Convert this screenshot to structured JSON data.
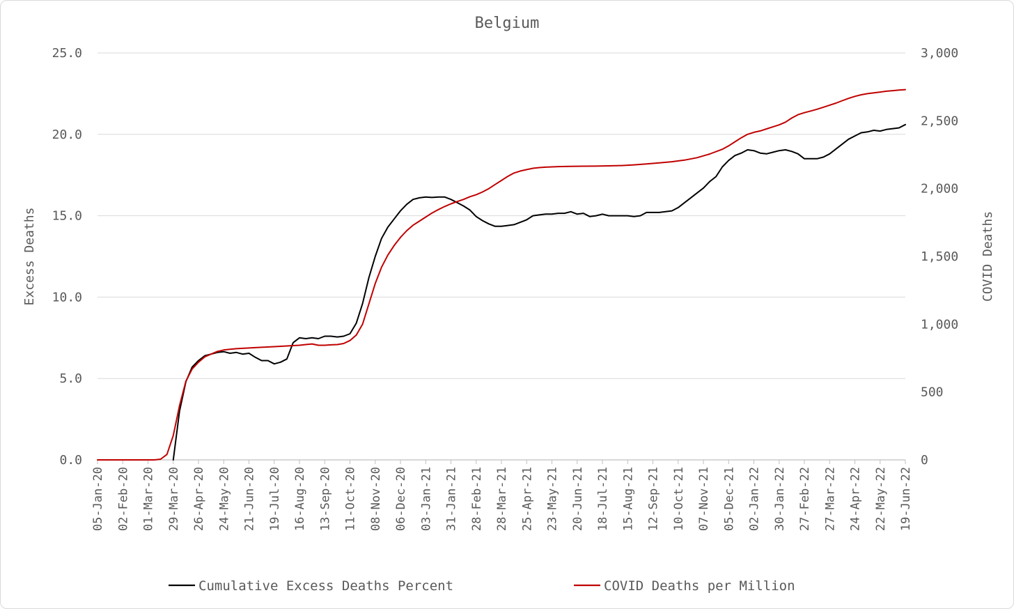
{
  "chart_data": {
    "type": "line",
    "title": "Belgium",
    "ylabel": "Excess Deaths",
    "y2label": "COVID Deaths",
    "ylim": [
      0,
      25
    ],
    "y2lim": [
      0,
      3000
    ],
    "y_ticks": [
      "0.0",
      "5.0",
      "10.0",
      "15.0",
      "20.0",
      "25.0"
    ],
    "y2_ticks": [
      "0",
      "500",
      "1,000",
      "1,500",
      "2,000",
      "2,500",
      "3,000"
    ],
    "x_tick_labels": [
      "05-Jan-20",
      "02-Feb-20",
      "01-Mar-20",
      "29-Mar-20",
      "26-Apr-20",
      "24-May-20",
      "21-Jun-20",
      "19-Jul-20",
      "16-Aug-20",
      "13-Sep-20",
      "11-Oct-20",
      "08-Nov-20",
      "06-Dec-20",
      "03-Jan-21",
      "31-Jan-21",
      "28-Feb-21",
      "28-Mar-21",
      "25-Apr-21",
      "23-May-21",
      "20-Jun-21",
      "18-Jul-21",
      "15-Aug-21",
      "12-Sep-21",
      "10-Oct-21",
      "07-Nov-21",
      "05-Dec-21",
      "02-Jan-22",
      "30-Jan-22",
      "27-Feb-22",
      "27-Mar-22",
      "24-Apr-22",
      "22-May-22",
      "19-Jun-22"
    ],
    "x_range": [
      "05-Jan-20",
      "19-Jun-22"
    ],
    "grid": "horizontal",
    "legend_position": "bottom",
    "series": [
      {
        "name": "Cumulative Excess Deaths Percent",
        "axis": "left",
        "color": "#000000",
        "points": [
          [
            "29-Mar-20",
            0.0
          ],
          [
            "05-Apr-20",
            3.0
          ],
          [
            "12-Apr-20",
            4.8
          ],
          [
            "19-Apr-20",
            5.7
          ],
          [
            "26-Apr-20",
            6.1
          ],
          [
            "03-May-20",
            6.4
          ],
          [
            "10-May-20",
            6.5
          ],
          [
            "17-May-20",
            6.6
          ],
          [
            "24-May-20",
            6.65
          ],
          [
            "31-May-20",
            6.55
          ],
          [
            "07-Jun-20",
            6.6
          ],
          [
            "14-Jun-20",
            6.5
          ],
          [
            "21-Jun-20",
            6.55
          ],
          [
            "28-Jun-20",
            6.3
          ],
          [
            "05-Jul-20",
            6.1
          ],
          [
            "12-Jul-20",
            6.1
          ],
          [
            "19-Jul-20",
            5.9
          ],
          [
            "26-Jul-20",
            6.0
          ],
          [
            "02-Aug-20",
            6.2
          ],
          [
            "09-Aug-20",
            7.2
          ],
          [
            "16-Aug-20",
            7.5
          ],
          [
            "23-Aug-20",
            7.45
          ],
          [
            "30-Aug-20",
            7.5
          ],
          [
            "06-Sep-20",
            7.45
          ],
          [
            "13-Sep-20",
            7.6
          ],
          [
            "20-Sep-20",
            7.6
          ],
          [
            "27-Sep-20",
            7.55
          ],
          [
            "04-Oct-20",
            7.6
          ],
          [
            "11-Oct-20",
            7.75
          ],
          [
            "18-Oct-20",
            8.4
          ],
          [
            "25-Oct-20",
            9.6
          ],
          [
            "01-Nov-20",
            11.2
          ],
          [
            "08-Nov-20",
            12.5
          ],
          [
            "15-Nov-20",
            13.6
          ],
          [
            "22-Nov-20",
            14.3
          ],
          [
            "29-Nov-20",
            14.8
          ],
          [
            "06-Dec-20",
            15.3
          ],
          [
            "13-Dec-20",
            15.7
          ],
          [
            "20-Dec-20",
            16.0
          ],
          [
            "27-Dec-20",
            16.1
          ],
          [
            "03-Jan-21",
            16.15
          ],
          [
            "10-Jan-21",
            16.12
          ],
          [
            "17-Jan-21",
            16.15
          ],
          [
            "24-Jan-21",
            16.15
          ],
          [
            "31-Jan-21",
            16.0
          ],
          [
            "07-Feb-21",
            15.8
          ],
          [
            "14-Feb-21",
            15.6
          ],
          [
            "21-Feb-21",
            15.35
          ],
          [
            "28-Feb-21",
            14.95
          ],
          [
            "07-Mar-21",
            14.7
          ],
          [
            "14-Mar-21",
            14.5
          ],
          [
            "21-Mar-21",
            14.35
          ],
          [
            "28-Mar-21",
            14.35
          ],
          [
            "04-Apr-21",
            14.4
          ],
          [
            "11-Apr-21",
            14.45
          ],
          [
            "18-Apr-21",
            14.6
          ],
          [
            "25-Apr-21",
            14.75
          ],
          [
            "02-May-21",
            15.0
          ],
          [
            "09-May-21",
            15.05
          ],
          [
            "16-May-21",
            15.1
          ],
          [
            "23-May-21",
            15.1
          ],
          [
            "30-May-21",
            15.15
          ],
          [
            "06-Jun-21",
            15.15
          ],
          [
            "13-Jun-21",
            15.25
          ],
          [
            "20-Jun-21",
            15.1
          ],
          [
            "27-Jun-21",
            15.15
          ],
          [
            "04-Jul-21",
            14.95
          ],
          [
            "11-Jul-21",
            15.0
          ],
          [
            "18-Jul-21",
            15.1
          ],
          [
            "25-Jul-21",
            15.0
          ],
          [
            "01-Aug-21",
            15.0
          ],
          [
            "08-Aug-21",
            15.0
          ],
          [
            "15-Aug-21",
            15.0
          ],
          [
            "22-Aug-21",
            14.95
          ],
          [
            "29-Aug-21",
            15.0
          ],
          [
            "05-Sep-21",
            15.2
          ],
          [
            "12-Sep-21",
            15.2
          ],
          [
            "19-Sep-21",
            15.2
          ],
          [
            "26-Sep-21",
            15.25
          ],
          [
            "03-Oct-21",
            15.3
          ],
          [
            "10-Oct-21",
            15.5
          ],
          [
            "17-Oct-21",
            15.8
          ],
          [
            "24-Oct-21",
            16.1
          ],
          [
            "31-Oct-21",
            16.4
          ],
          [
            "07-Nov-21",
            16.7
          ],
          [
            "14-Nov-21",
            17.1
          ],
          [
            "21-Nov-21",
            17.4
          ],
          [
            "28-Nov-21",
            18.0
          ],
          [
            "05-Dec-21",
            18.4
          ],
          [
            "12-Dec-21",
            18.7
          ],
          [
            "19-Dec-21",
            18.85
          ],
          [
            "26-Dec-21",
            19.05
          ],
          [
            "02-Jan-22",
            19.0
          ],
          [
            "09-Jan-22",
            18.85
          ],
          [
            "16-Jan-22",
            18.8
          ],
          [
            "23-Jan-22",
            18.9
          ],
          [
            "30-Jan-22",
            19.0
          ],
          [
            "06-Feb-22",
            19.05
          ],
          [
            "13-Feb-22",
            18.95
          ],
          [
            "20-Feb-22",
            18.8
          ],
          [
            "27-Feb-22",
            18.5
          ],
          [
            "06-Mar-22",
            18.5
          ],
          [
            "13-Mar-22",
            18.5
          ],
          [
            "20-Mar-22",
            18.6
          ],
          [
            "27-Mar-22",
            18.8
          ],
          [
            "03-Apr-22",
            19.1
          ],
          [
            "10-Apr-22",
            19.4
          ],
          [
            "17-Apr-22",
            19.7
          ],
          [
            "24-Apr-22",
            19.9
          ],
          [
            "01-May-22",
            20.1
          ],
          [
            "08-May-22",
            20.15
          ],
          [
            "15-May-22",
            20.25
          ],
          [
            "22-May-22",
            20.2
          ],
          [
            "29-May-22",
            20.3
          ],
          [
            "05-Jun-22",
            20.35
          ],
          [
            "12-Jun-22",
            20.4
          ],
          [
            "19-Jun-22",
            20.6
          ]
        ]
      },
      {
        "name": "COVID Deaths per Million",
        "axis": "right",
        "color": "#c00000",
        "points": [
          [
            "05-Jan-20",
            0
          ],
          [
            "08-Mar-20",
            0
          ],
          [
            "15-Mar-20",
            5
          ],
          [
            "22-Mar-20",
            40
          ],
          [
            "29-Mar-20",
            180
          ],
          [
            "05-Apr-20",
            400
          ],
          [
            "12-Apr-20",
            580
          ],
          [
            "19-Apr-20",
            670
          ],
          [
            "26-Apr-20",
            720
          ],
          [
            "03-May-20",
            760
          ],
          [
            "10-May-20",
            780
          ],
          [
            "17-May-20",
            800
          ],
          [
            "24-May-20",
            810
          ],
          [
            "31-May-20",
            815
          ],
          [
            "07-Jun-20",
            820
          ],
          [
            "21-Jun-20",
            825
          ],
          [
            "05-Jul-20",
            830
          ],
          [
            "19-Jul-20",
            835
          ],
          [
            "02-Aug-20",
            840
          ],
          [
            "16-Aug-20",
            845
          ],
          [
            "23-Aug-20",
            850
          ],
          [
            "30-Aug-20",
            855
          ],
          [
            "06-Sep-20",
            845
          ],
          [
            "13-Sep-20",
            845
          ],
          [
            "20-Sep-20",
            848
          ],
          [
            "27-Sep-20",
            850
          ],
          [
            "04-Oct-20",
            858
          ],
          [
            "11-Oct-20",
            880
          ],
          [
            "18-Oct-20",
            920
          ],
          [
            "25-Oct-20",
            1000
          ],
          [
            "01-Nov-20",
            1150
          ],
          [
            "08-Nov-20",
            1300
          ],
          [
            "15-Nov-20",
            1420
          ],
          [
            "22-Nov-20",
            1510
          ],
          [
            "29-Nov-20",
            1580
          ],
          [
            "06-Dec-20",
            1640
          ],
          [
            "13-Dec-20",
            1690
          ],
          [
            "20-Dec-20",
            1730
          ],
          [
            "27-Dec-20",
            1760
          ],
          [
            "03-Jan-21",
            1790
          ],
          [
            "10-Jan-21",
            1820
          ],
          [
            "17-Jan-21",
            1845
          ],
          [
            "24-Jan-21",
            1868
          ],
          [
            "31-Jan-21",
            1888
          ],
          [
            "07-Feb-21",
            1905
          ],
          [
            "14-Feb-21",
            1920
          ],
          [
            "21-Feb-21",
            1940
          ],
          [
            "28-Feb-21",
            1955
          ],
          [
            "07-Mar-21",
            1975
          ],
          [
            "14-Mar-21",
            2000
          ],
          [
            "21-Mar-21",
            2030
          ],
          [
            "28-Mar-21",
            2060
          ],
          [
            "04-Apr-21",
            2090
          ],
          [
            "11-Apr-21",
            2115
          ],
          [
            "18-Apr-21",
            2130
          ],
          [
            "25-Apr-21",
            2140
          ],
          [
            "02-May-21",
            2150
          ],
          [
            "09-May-21",
            2155
          ],
          [
            "16-May-21",
            2158
          ],
          [
            "23-May-21",
            2160
          ],
          [
            "30-May-21",
            2162
          ],
          [
            "13-Jun-21",
            2164
          ],
          [
            "27-Jun-21",
            2165
          ],
          [
            "11-Jul-21",
            2166
          ],
          [
            "25-Jul-21",
            2168
          ],
          [
            "08-Aug-21",
            2170
          ],
          [
            "22-Aug-21",
            2175
          ],
          [
            "05-Sep-21",
            2182
          ],
          [
            "19-Sep-21",
            2190
          ],
          [
            "03-Oct-21",
            2198
          ],
          [
            "17-Oct-21",
            2210
          ],
          [
            "31-Oct-21",
            2228
          ],
          [
            "14-Nov-21",
            2255
          ],
          [
            "28-Nov-21",
            2290
          ],
          [
            "05-Dec-21",
            2315
          ],
          [
            "12-Dec-21",
            2345
          ],
          [
            "19-Dec-21",
            2375
          ],
          [
            "26-Dec-21",
            2400
          ],
          [
            "02-Jan-22",
            2415
          ],
          [
            "09-Jan-22",
            2425
          ],
          [
            "16-Jan-22",
            2440
          ],
          [
            "23-Jan-22",
            2455
          ],
          [
            "30-Jan-22",
            2470
          ],
          [
            "06-Feb-22",
            2490
          ],
          [
            "13-Feb-22",
            2520
          ],
          [
            "20-Feb-22",
            2545
          ],
          [
            "27-Feb-22",
            2560
          ],
          [
            "06-Mar-22",
            2572
          ],
          [
            "13-Mar-22",
            2585
          ],
          [
            "20-Mar-22",
            2600
          ],
          [
            "27-Mar-22",
            2615
          ],
          [
            "03-Apr-22",
            2630
          ],
          [
            "10-Apr-22",
            2648
          ],
          [
            "17-Apr-22",
            2665
          ],
          [
            "24-Apr-22",
            2680
          ],
          [
            "01-May-22",
            2692
          ],
          [
            "08-May-22",
            2700
          ],
          [
            "15-May-22",
            2706
          ],
          [
            "22-May-22",
            2712
          ],
          [
            "29-May-22",
            2718
          ],
          [
            "05-Jun-22",
            2722
          ],
          [
            "12-Jun-22",
            2726
          ],
          [
            "19-Jun-22",
            2730
          ]
        ]
      }
    ]
  }
}
